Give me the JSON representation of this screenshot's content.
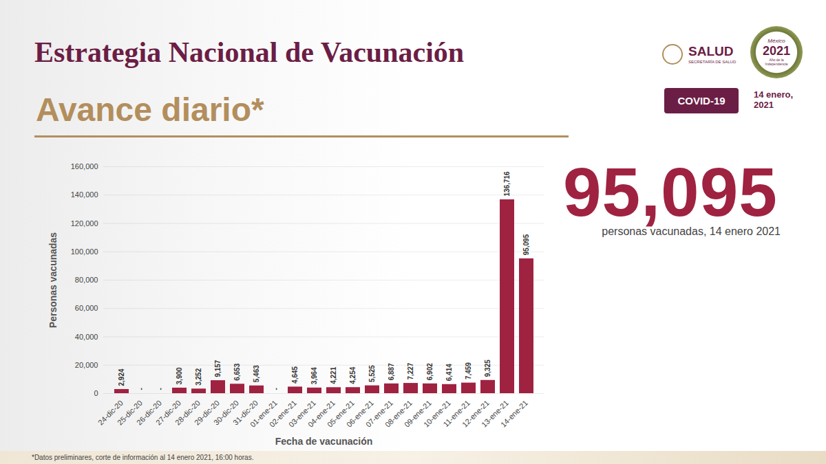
{
  "chart_data": {
    "type": "bar",
    "title": "Estrategia Nacional de Vacunación",
    "subtitle": "Avance diario*",
    "x_label": "Fecha de vacunación",
    "y_label": "Personas vacunadas",
    "categories": [
      "24-dic-20",
      "25-dic-20",
      "26-dic-20",
      "27-dic-20",
      "28-dic-20",
      "29-dic-20",
      "30-dic-20",
      "31-dic-20",
      "01-ene-21",
      "02-ene-21",
      "03-ene-21",
      "04-ene-21",
      "05-ene-21",
      "06-ene-21",
      "07-ene-21",
      "08-ene-21",
      "09-ene-21",
      "10-ene-21",
      "11-ene-21",
      "12-ene-21",
      "13-ene-21",
      "14-ene-21"
    ],
    "values": [
      2924,
      0,
      0,
      3900,
      3252,
      9157,
      6653,
      5463,
      0,
      4645,
      3964,
      4221,
      4254,
      5525,
      6887,
      7227,
      6902,
      6414,
      7459,
      9325,
      136716,
      95095
    ],
    "value_labels": [
      "2,924",
      "-",
      "-",
      "3,900",
      "3,252",
      "9,157",
      "6,653",
      "5,463",
      "-",
      "4,645",
      "3,964",
      "4,221",
      "4,254",
      "5,525",
      "6,887",
      "7,227",
      "6,902",
      "6,414",
      "7,459",
      "9,325",
      "136,716",
      "95,095"
    ],
    "color": "#9f2241",
    "ylim": [
      0,
      160000
    ],
    "yticks": [
      0,
      {
        "value": 20000,
        "label": "20,000"
      },
      {
        "value": 40000,
        "label": "40,000"
      },
      {
        "value": 60000,
        "label": "60,000"
      },
      {
        "value": 80000,
        "label": "80,000"
      },
      {
        "value": 100000,
        "label": "100,000"
      },
      {
        "value": 120000,
        "label": "120,000"
      },
      {
        "value": 140000,
        "label": "140,000"
      },
      {
        "value": 160000,
        "label": "160,000"
      }
    ],
    "grid": true,
    "data_labels": true,
    "highlight": {
      "value": 95095,
      "label": "95,095",
      "caption": "personas vacunadas, 14 enero 2021"
    },
    "badge": "COVID-19",
    "date": "14 enero, 2021",
    "salud_logo": {
      "name": "SALUD",
      "subtitle": "SECRETARÍA DE SALUD"
    },
    "emblem": {
      "top": "México",
      "year": "2021",
      "bottom": "Año de la Independencia"
    },
    "footnote": "*Datos preliminares, corte de información al 14 enero 2021, 16:00 horas."
  }
}
